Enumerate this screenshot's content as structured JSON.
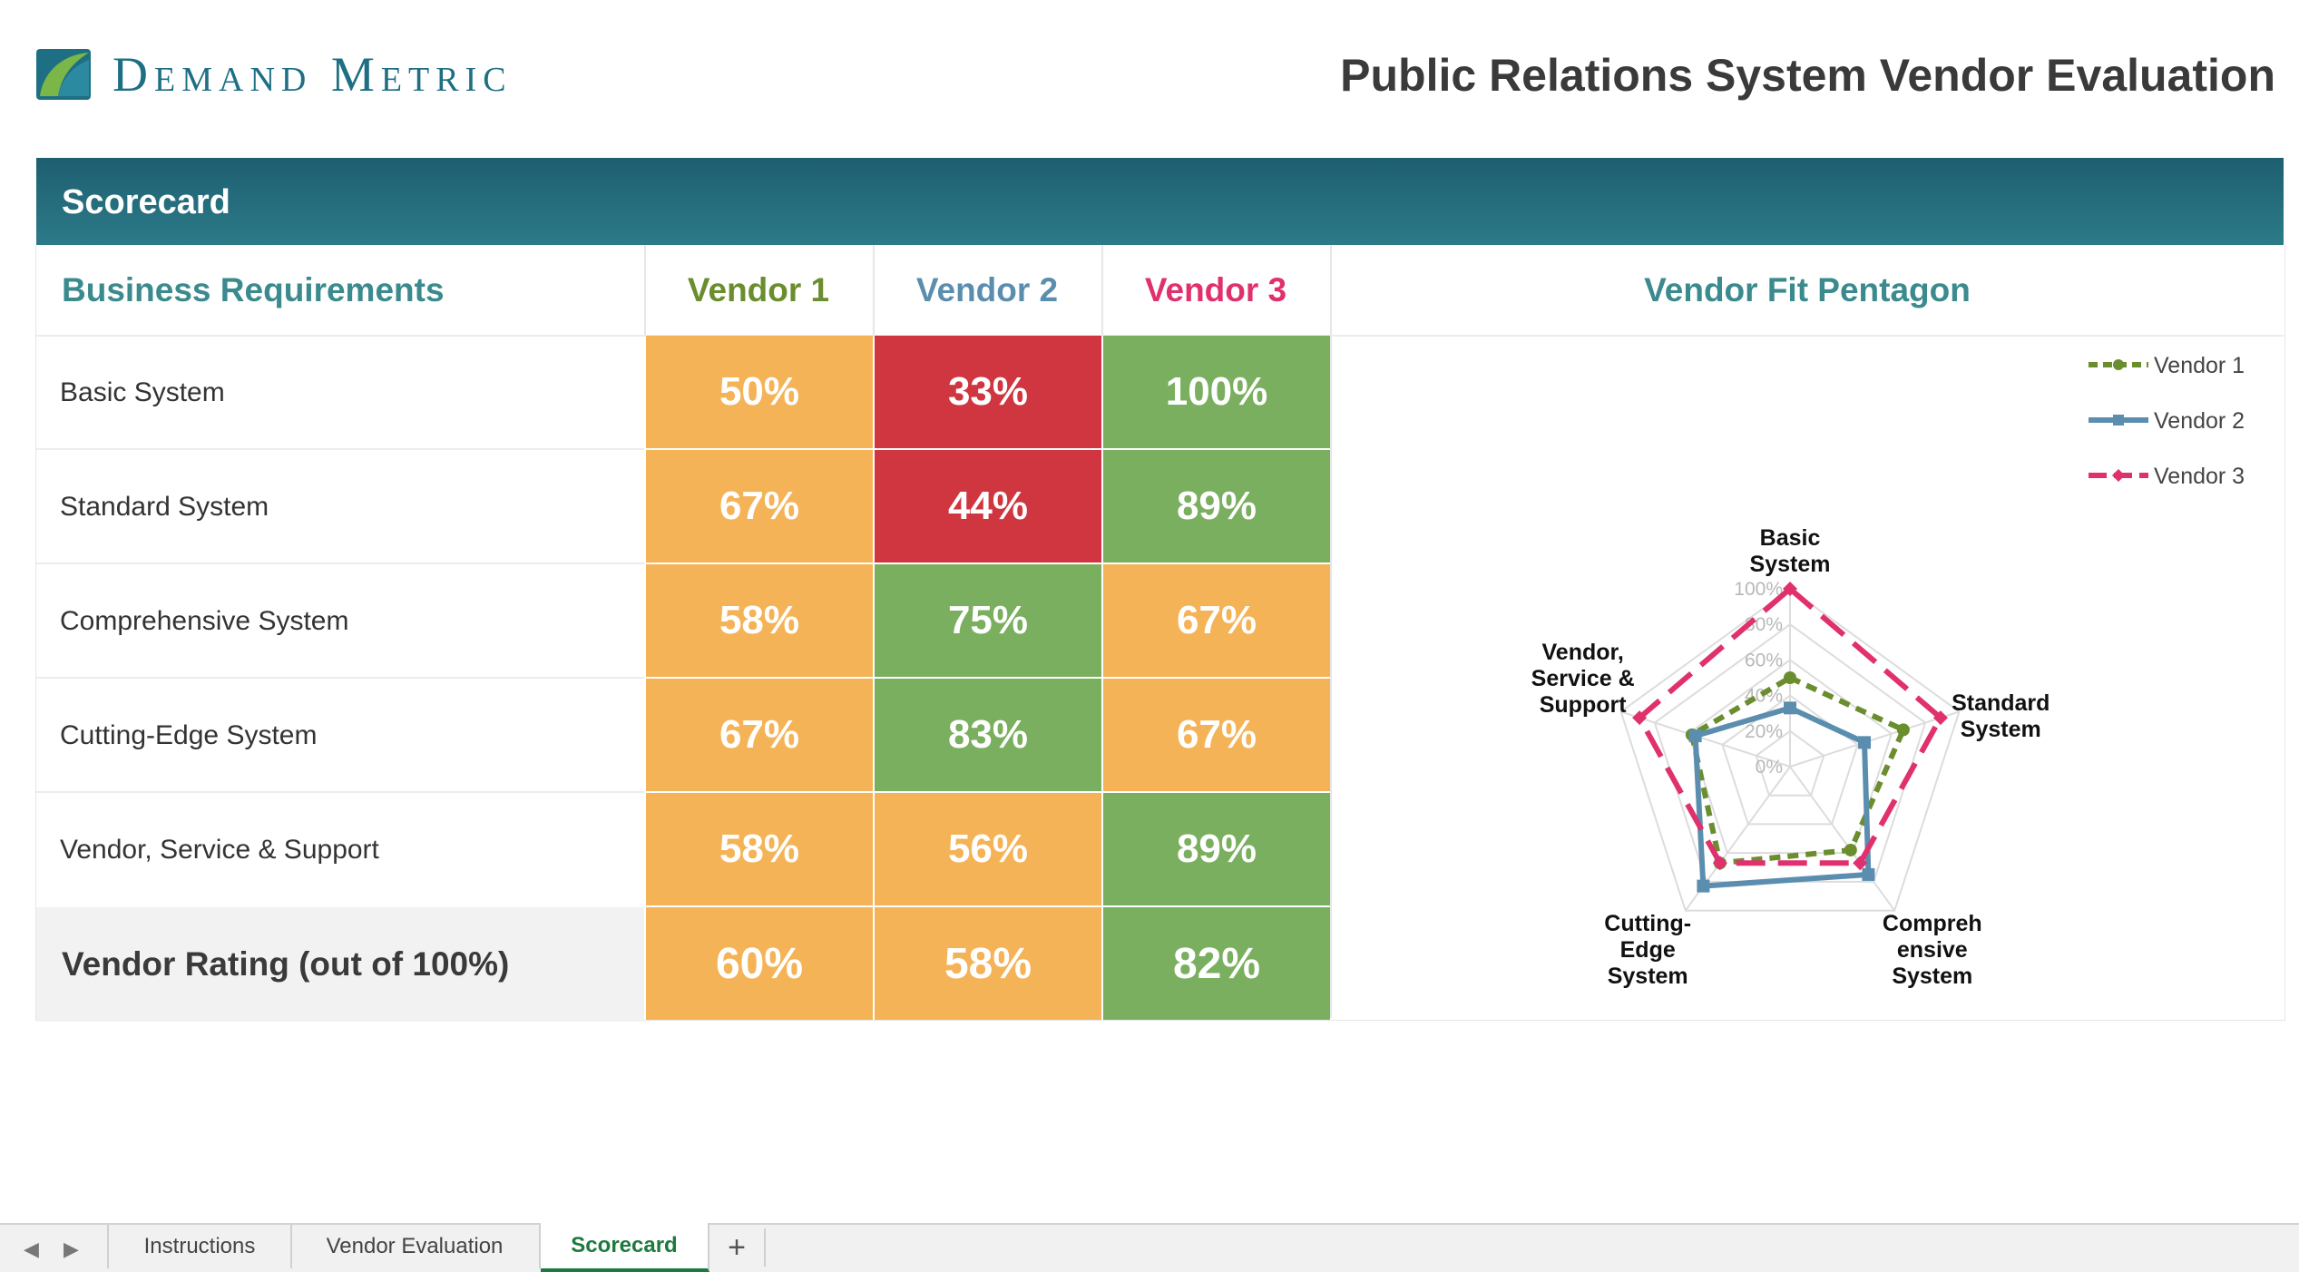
{
  "brand": {
    "name": "Demand Metric"
  },
  "document": {
    "title": "Public Relations System Vendor Evaluation"
  },
  "section": {
    "title": "Scorecard"
  },
  "table": {
    "requirements_header": "Business Requirements",
    "vendor_headers": [
      "Vendor 1",
      "Vendor 2",
      "Vendor 3"
    ],
    "vendor_colors": [
      "#6a8d2e",
      "#5b8eae",
      "#e0306e"
    ],
    "rows": [
      {
        "label": "Basic System",
        "values": [
          "50%",
          "33%",
          "100%"
        ],
        "fills": [
          "amber",
          "red",
          "green"
        ]
      },
      {
        "label": "Standard System",
        "values": [
          "67%",
          "44%",
          "89%"
        ],
        "fills": [
          "amber",
          "red",
          "green"
        ]
      },
      {
        "label": "Comprehensive System",
        "values": [
          "58%",
          "75%",
          "67%"
        ],
        "fills": [
          "amber",
          "green",
          "amber"
        ]
      },
      {
        "label": "Cutting-Edge System",
        "values": [
          "67%",
          "83%",
          "67%"
        ],
        "fills": [
          "amber",
          "green",
          "amber"
        ]
      },
      {
        "label": "Vendor, Service & Support",
        "values": [
          "58%",
          "56%",
          "89%"
        ],
        "fills": [
          "amber",
          "amber",
          "green"
        ]
      }
    ],
    "total": {
      "label": "Vendor Rating (out of 100%)",
      "values": [
        "60%",
        "58%",
        "82%"
      ],
      "fills": [
        "amber",
        "amber",
        "green"
      ]
    },
    "fill_colors": {
      "amber": "#f5b357",
      "red": "#cf3640",
      "green": "#7aaf5f"
    }
  },
  "chart_title": "Vendor Fit Pentagon",
  "chart_data": {
    "type": "radar",
    "axes": [
      "Basic System",
      "Standard System",
      "Comprehensive System",
      "Cutting-Edge System",
      "Vendor, Service & Support"
    ],
    "axis_labels": [
      [
        "Basic",
        "System"
      ],
      [
        "Standard",
        "System"
      ],
      [
        "Compreh",
        "ensive",
        "System"
      ],
      [
        "Cutting-",
        "Edge",
        "System"
      ],
      [
        "Vendor,",
        "Service &",
        "Support"
      ]
    ],
    "ticks": [
      "0%",
      "20%",
      "40%",
      "60%",
      "80%",
      "100%"
    ],
    "range": [
      0,
      100
    ],
    "legend_position": "top-right",
    "series": [
      {
        "name": "Vendor 1",
        "values": [
          50,
          67,
          58,
          67,
          58
        ],
        "color": "#6a8d2e",
        "style": "short-dash",
        "marker": "circle"
      },
      {
        "name": "Vendor 2",
        "values": [
          33,
          44,
          75,
          83,
          56
        ],
        "color": "#5b8eae",
        "style": "solid",
        "marker": "square"
      },
      {
        "name": "Vendor 3",
        "values": [
          100,
          89,
          67,
          67,
          89
        ],
        "color": "#e0306e",
        "style": "long-dash",
        "marker": "diamond"
      }
    ]
  },
  "sheet_tabs": {
    "tabs": [
      "Instructions",
      "Vendor Evaluation",
      "Scorecard"
    ],
    "active": "Scorecard",
    "add_label": "+"
  }
}
